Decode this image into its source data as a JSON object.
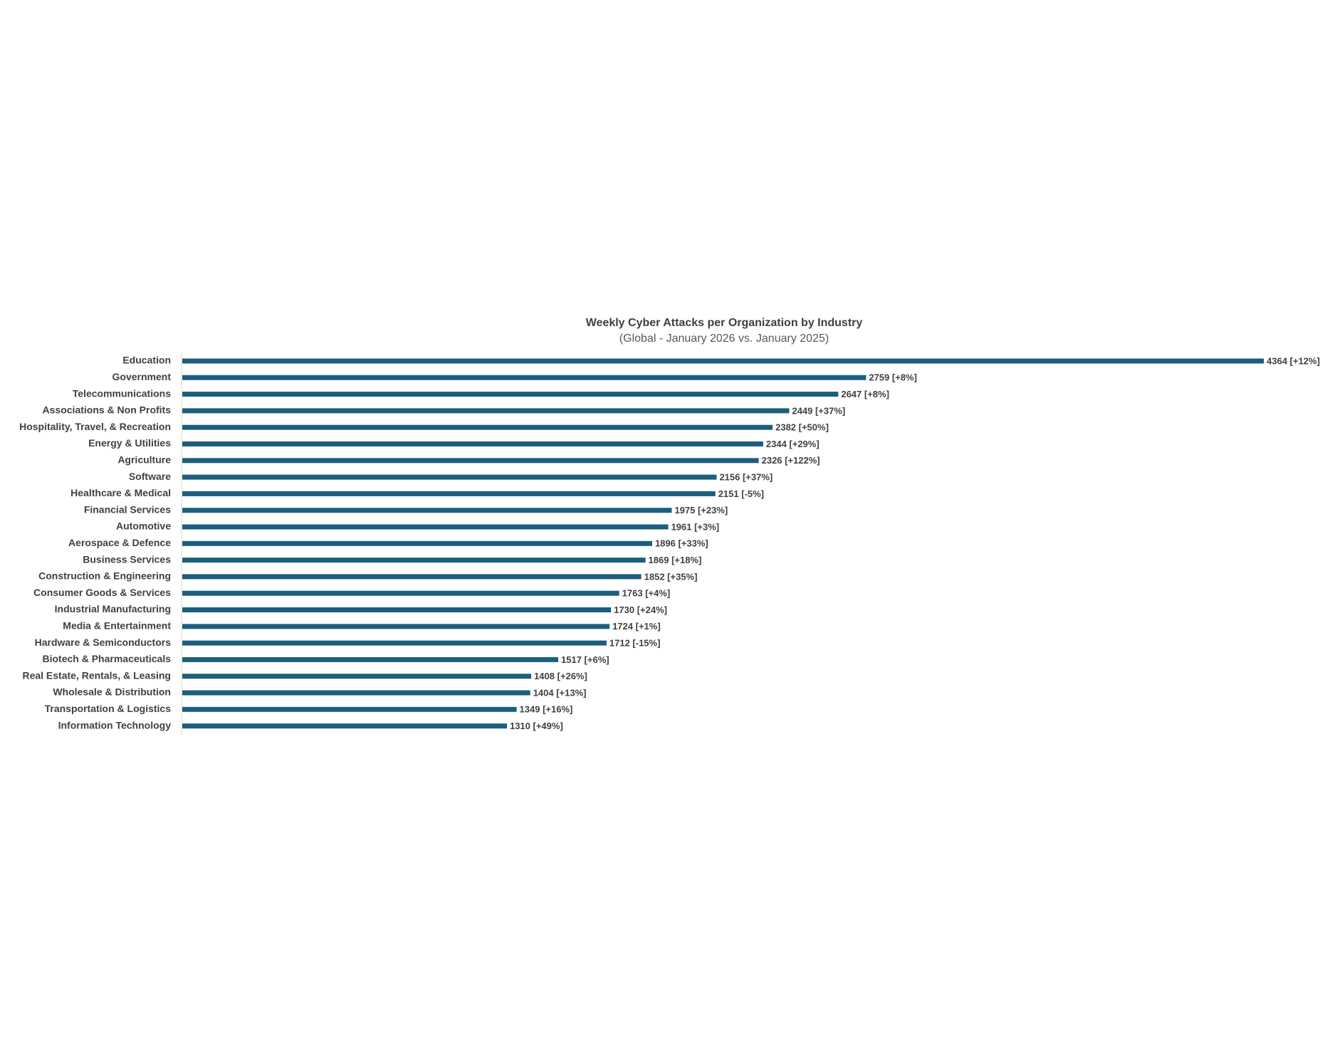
{
  "chart_data": {
    "type": "bar",
    "orientation": "horizontal",
    "title": "Weekly Cyber Attacks per Organization by Industry",
    "subtitle": "(Global - January 2026 vs. January 2025)",
    "color": "#1b5e7e",
    "categories": [
      "Education",
      "Government",
      "Telecommunications",
      "Associations & Non Profits",
      "Hospitality, Travel, & Recreation",
      "Energy & Utilities",
      "Agriculture",
      "Software",
      "Healthcare & Medical",
      "Financial Services",
      "Automotive",
      "Aerospace & Defence",
      "Business Services",
      "Construction & Engineering",
      "Consumer Goods & Services",
      "Industrial Manufacturing",
      "Media & Entertainment",
      "Hardware & Semiconductors",
      "Biotech & Pharmaceuticals",
      "Real Estate, Rentals, & Leasing",
      "Wholesale & Distribution",
      "Transportation & Logistics",
      "Information Technology"
    ],
    "values": [
      4364,
      2759,
      2647,
      2449,
      2382,
      2344,
      2326,
      2156,
      2151,
      1975,
      1961,
      1896,
      1869,
      1852,
      1763,
      1730,
      1724,
      1712,
      1517,
      1408,
      1404,
      1349,
      1310
    ],
    "value_labels": [
      "4364 [+12%]",
      "2759 [+8%]",
      "2647 [+8%]",
      "2449 [+37%]",
      "2382 [+50%]",
      "2344 [+29%]",
      "2326 [+122%]",
      "2156 [+37%]",
      "2151 [-5%]",
      "1975 [+23%]",
      "1961 [+3%]",
      "1896 [+33%]",
      "1869 [+18%]",
      "1852 [+35%]",
      "1763 [+4%]",
      "1730 [+24%]",
      "1724 [+1%]",
      "1712 [-15%]",
      "1517 [+6%]",
      "1408 [+26%]",
      "1404 [+13%]",
      "1349 [+16%]",
      "1310 [+49%]"
    ]
  }
}
